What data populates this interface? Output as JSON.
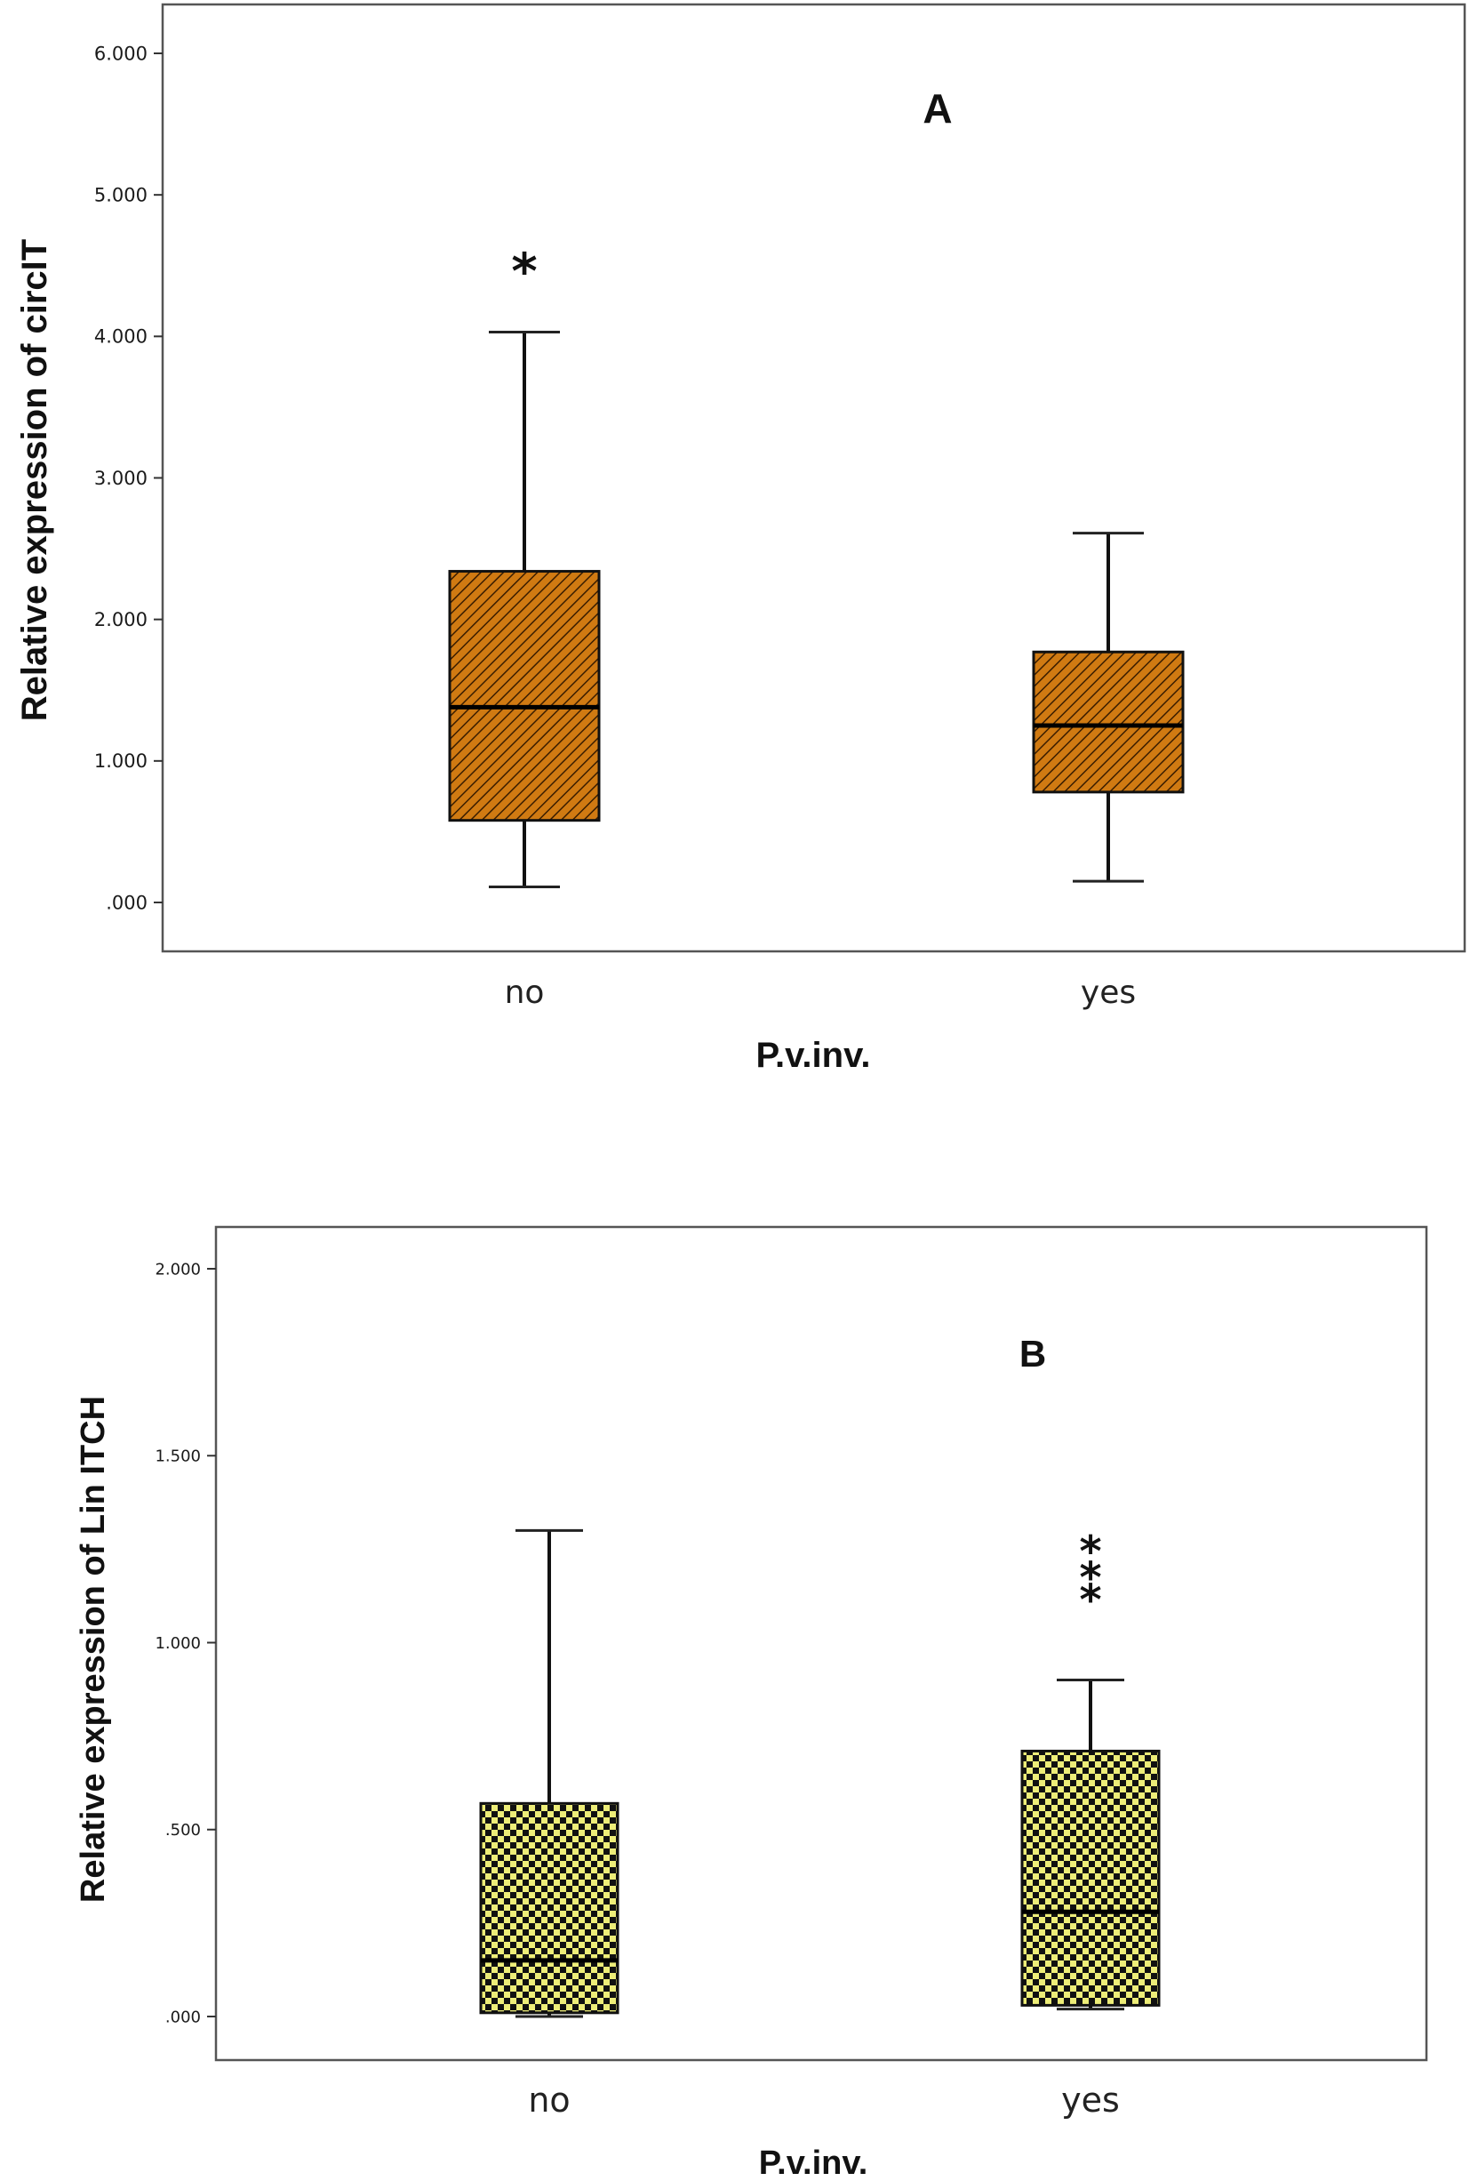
{
  "chart_data": [
    {
      "type": "box",
      "panel_label": "A",
      "xlabel": "P.v.inv.",
      "ylabel": "Relative expression of circIT",
      "ylim": [
        0,
        6
      ],
      "yticks": [
        ".000",
        "1.000",
        "2.000",
        "3.000",
        "4.000",
        "5.000",
        "6.000"
      ],
      "ytick_values": [
        0,
        1,
        2,
        3,
        4,
        5,
        6
      ],
      "categories": [
        "no",
        "yes"
      ],
      "boxes": [
        {
          "category": "no",
          "whisker_low": 0.11,
          "q1": 0.58,
          "median": 1.38,
          "q3": 2.34,
          "whisker_high": 4.03
        },
        {
          "category": "yes",
          "whisker_low": 0.15,
          "q1": 0.78,
          "median": 1.25,
          "q3": 1.77,
          "whisker_high": 2.61
        }
      ],
      "outliers": [
        {
          "category": "no",
          "value": 4.45,
          "marker": "*"
        }
      ],
      "fill_color": "#d07a12",
      "hatch": "diagonal",
      "grid": false
    },
    {
      "type": "box",
      "panel_label": "B",
      "xlabel": "P.v.inv.",
      "ylabel": "Relative expression of Lin ITCH",
      "ylim": [
        0,
        2
      ],
      "yticks": [
        ".000",
        ".500",
        "1.000",
        "1.500",
        "2.000"
      ],
      "ytick_values": [
        0,
        0.5,
        1,
        1.5,
        2
      ],
      "categories": [
        "no",
        "yes"
      ],
      "boxes": [
        {
          "category": "no",
          "whisker_low": 0.0,
          "q1": 0.01,
          "median": 0.15,
          "q3": 0.57,
          "whisker_high": 1.3
        },
        {
          "category": "yes",
          "whisker_low": 0.02,
          "q1": 0.03,
          "median": 0.28,
          "q3": 0.71,
          "whisker_high": 0.9
        }
      ],
      "outliers": [
        {
          "category": "yes",
          "value": 1.12,
          "marker": "*"
        },
        {
          "category": "yes",
          "value": 1.18,
          "marker": "*"
        },
        {
          "category": "yes",
          "value": 1.25,
          "marker": "*"
        }
      ],
      "fill_color": "#eded78",
      "hatch": "checkerboard",
      "grid": false
    }
  ]
}
